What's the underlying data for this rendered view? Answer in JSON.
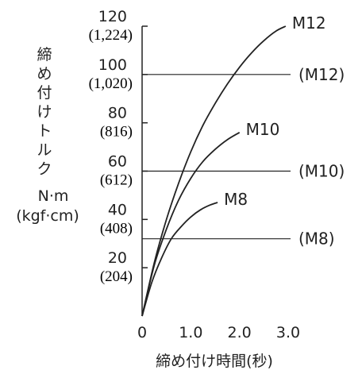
{
  "chart_data": {
    "type": "line",
    "xlabel": "締め付け時間(秒)",
    "ylabel_lines": [
      "締",
      "め",
      "付",
      "け",
      "ト",
      "ル",
      "ク"
    ],
    "yunit": "N·m",
    "yunit_alt": "(kgf·cm)",
    "xlim": [
      0,
      3.0
    ],
    "ylim": [
      0,
      120
    ],
    "x_ticks": [
      {
        "value": 0,
        "label": "0"
      },
      {
        "value": 1.0,
        "label": "1.0"
      },
      {
        "value": 2.0,
        "label": "2.0"
      },
      {
        "value": 3.0,
        "label": "3.0"
      }
    ],
    "y_ticks": [
      {
        "value": 20,
        "label": "20",
        "sub": "(204)"
      },
      {
        "value": 40,
        "label": "40",
        "sub": "(408)"
      },
      {
        "value": 60,
        "label": "60",
        "sub": "(612)"
      },
      {
        "value": 80,
        "label": "80",
        "sub": "(816)"
      },
      {
        "value": 100,
        "label": "100",
        "sub": "(1,020)"
      },
      {
        "value": 120,
        "label": "120",
        "sub": "(1,224)"
      }
    ],
    "series": [
      {
        "name": "M12",
        "x": [
          0,
          0.25,
          0.5,
          0.75,
          1.0,
          1.25,
          1.5,
          1.75,
          2.0,
          2.25,
          2.5,
          2.75,
          2.95
        ],
        "y": [
          0,
          22,
          40,
          55,
          68,
          79,
          88,
          96,
          103,
          109,
          114,
          118,
          120
        ]
      },
      {
        "name": "M10",
        "x": [
          0,
          0.25,
          0.5,
          0.75,
          1.0,
          1.25,
          1.5,
          1.75,
          2.0
        ],
        "y": [
          0,
          21,
          36,
          48,
          57,
          64,
          69,
          73,
          76
        ]
      },
      {
        "name": "M8",
        "x": [
          0,
          0.2,
          0.4,
          0.6,
          0.8,
          1.0,
          1.2,
          1.4,
          1.55
        ],
        "y": [
          0,
          14,
          24,
          32,
          37,
          41,
          44,
          46,
          47
        ]
      }
    ],
    "reference_lines": [
      {
        "label": "(M12)",
        "y": 100
      },
      {
        "label": "(M10)",
        "y": 60
      },
      {
        "label": "(M8)",
        "y": 32
      }
    ],
    "grid": false,
    "legend": "none"
  }
}
